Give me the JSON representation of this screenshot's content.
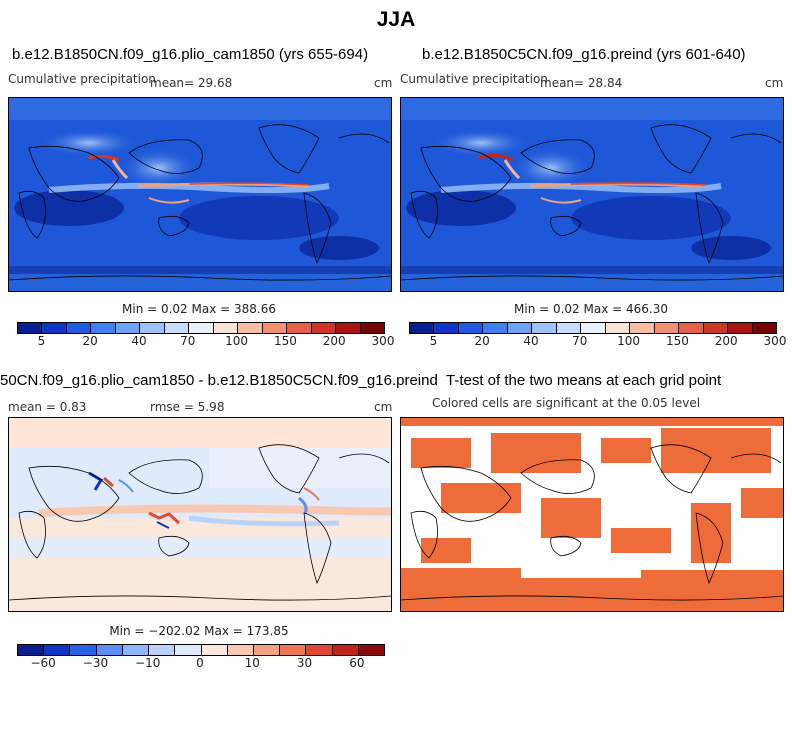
{
  "title": "JJA",
  "panels": [
    {
      "title": "b.e12.B1850CN.f09_g16.plio_cam1850 (yrs 655-694)",
      "variable": "Cumulative precipitation",
      "mean": "mean=  29.68",
      "units": "cm",
      "minmax": "Min =   0.02 Max = 388.66"
    },
    {
      "title": "b.e12.B1850C5CN.f09_g16.preind (yrs 601-640)",
      "variable": "Cumulative precipitation",
      "mean": "mean=  28.84",
      "units": "cm",
      "minmax": "Min =   0.02 Max = 466.30"
    },
    {
      "title": "50CN.f09_g16.plio_cam1850 - b.e12.B1850C5CN.f09_g16.preind",
      "mean": "mean =   0.83",
      "rmse": "rmse =   5.98",
      "units": "cm",
      "minmax": "Min = −202.02 Max = 173.85"
    },
    {
      "title": "T-test of the two means at each grid point",
      "subtitle": "Colored cells are significant at the 0.05 level"
    }
  ],
  "colorbars": {
    "precip": {
      "ticks": [
        "5",
        "20",
        "40",
        "70",
        "100",
        "150",
        "200",
        "300"
      ],
      "colors": [
        "#0a1f8f",
        "#1035c4",
        "#1f5ae0",
        "#3f7ff0",
        "#6ea2f5",
        "#9cc2f8",
        "#c6dcfa",
        "#e8f0fb",
        "#fbe3d6",
        "#f7bea4",
        "#f19172",
        "#e6614a",
        "#cf3527",
        "#a81414",
        "#760606"
      ]
    },
    "diff": {
      "ticks": [
        "−60",
        "−30",
        "−10",
        "0",
        "10",
        "30",
        "60"
      ],
      "colors": [
        "#0a1f8f",
        "#1035c4",
        "#2b63e6",
        "#5b8ff2",
        "#8fb6f7",
        "#bad3fa",
        "#dfeafc",
        "#fbe8dc",
        "#f8c8b0",
        "#f3a283",
        "#ec7656",
        "#dc4a33",
        "#bf2418",
        "#8e0a0a"
      ]
    }
  }
}
